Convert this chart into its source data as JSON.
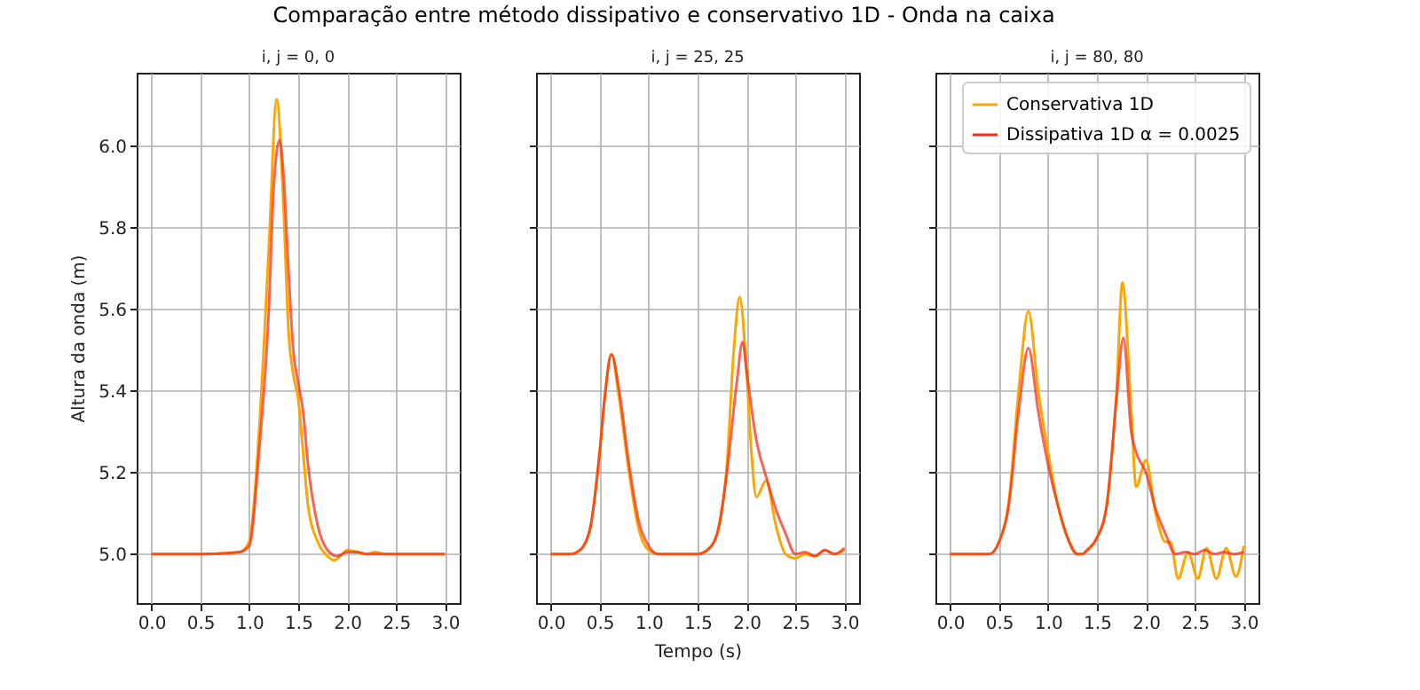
{
  "chart_data": [
    {
      "type": "line",
      "title": "i, j = 0, 0",
      "ylabel": "Altura da onda (m)",
      "annotations": [
        "Comparação entre método dissipativo e conservativo 1D - Onda na caixa"
      ],
      "xlim": [
        -0.15,
        3.15
      ],
      "ylim": [
        4.88,
        6.18
      ],
      "xticks": [
        {
          "value": 0,
          "label": "0.0"
        },
        0.5,
        {
          "value": 1,
          "label": "1.0"
        },
        1.5,
        {
          "value": 2,
          "label": "2.0"
        },
        2.5,
        {
          "value": 3,
          "label": "3.0"
        }
      ],
      "yticks": [
        {
          "value": 5,
          "label": "5.0"
        },
        5.2,
        5.4,
        5.6,
        5.8,
        {
          "value": 6,
          "label": "6.0"
        }
      ],
      "grid": true,
      "legend": false,
      "series": [
        {
          "color": "#ffa500",
          "x": [
            0,
            0.5,
            0.9,
            1.0,
            1.1,
            1.2,
            1.28,
            1.35,
            1.4,
            1.45,
            1.5,
            1.55,
            1.6,
            1.7,
            1.8,
            1.87,
            1.95,
            2.0,
            2.1,
            2.2,
            2.28,
            2.4,
            3.0
          ],
          "values": [
            5.0,
            5.0,
            5.005,
            5.03,
            5.3,
            5.75,
            6.115,
            5.85,
            5.55,
            5.44,
            5.38,
            5.25,
            5.12,
            5.03,
            4.995,
            4.985,
            5.0,
            5.01,
            5.005,
            5.0,
            5.005,
            5.0,
            5.0
          ]
        },
        {
          "color": "#f5301e",
          "x": [
            0,
            0.5,
            0.9,
            1.0,
            1.1,
            1.2,
            1.25,
            1.31,
            1.35,
            1.4,
            1.45,
            1.5,
            1.55,
            1.6,
            1.7,
            1.8,
            1.9,
            2.0,
            2.1,
            2.2,
            3.0
          ],
          "values": [
            5.0,
            5.0,
            5.005,
            5.02,
            5.25,
            5.6,
            5.9,
            6.015,
            5.93,
            5.7,
            5.5,
            5.42,
            5.35,
            5.22,
            5.07,
            5.01,
            4.995,
            5.005,
            5.005,
            5.0,
            5.0
          ]
        }
      ]
    },
    {
      "type": "line",
      "title": "i, j = 25, 25",
      "xlabel": "Tempo (s)",
      "xlim": [
        -0.15,
        3.15
      ],
      "ylim": [
        4.88,
        6.18
      ],
      "xticks": [
        {
          "value": 0,
          "label": "0.0"
        },
        0.5,
        {
          "value": 1,
          "label": "1.0"
        },
        1.5,
        {
          "value": 2,
          "label": "2.0"
        },
        2.5,
        {
          "value": 3,
          "label": "3.0"
        }
      ],
      "yticks": [
        5.0,
        5.2,
        5.4,
        5.6,
        5.8,
        6.0
      ],
      "tick_labels": "x",
      "grid": true,
      "legend": false,
      "series": [
        {
          "color": "#ffa500",
          "x": [
            0,
            0.2,
            0.3,
            0.4,
            0.5,
            0.55,
            0.62,
            0.7,
            0.8,
            0.9,
            1.0,
            1.1,
            1.5,
            1.6,
            1.7,
            1.8,
            1.87,
            1.93,
            2.0,
            2.05,
            2.1,
            2.2,
            2.3,
            2.4,
            2.5,
            2.6,
            2.7,
            2.8,
            2.9,
            3.0
          ],
          "values": [
            5.0,
            5.0,
            5.01,
            5.06,
            5.25,
            5.38,
            5.49,
            5.38,
            5.2,
            5.06,
            5.01,
            5.0,
            5.0,
            5.01,
            5.05,
            5.22,
            5.5,
            5.63,
            5.45,
            5.25,
            5.14,
            5.18,
            5.07,
            5.0,
            4.99,
            5.0,
            4.995,
            5.01,
            5.0,
            5.01
          ]
        },
        {
          "color": "#f5301e",
          "x": [
            0,
            0.2,
            0.3,
            0.4,
            0.5,
            0.55,
            0.62,
            0.7,
            0.8,
            0.9,
            1.0,
            1.1,
            1.5,
            1.6,
            1.7,
            1.8,
            1.9,
            1.96,
            2.0,
            2.1,
            2.2,
            2.3,
            2.4,
            2.5,
            2.6,
            2.7,
            2.8,
            2.9,
            3.0
          ],
          "values": [
            5.0,
            5.0,
            5.01,
            5.06,
            5.25,
            5.38,
            5.49,
            5.4,
            5.22,
            5.08,
            5.02,
            5.0,
            5.0,
            5.01,
            5.05,
            5.2,
            5.42,
            5.52,
            5.45,
            5.28,
            5.19,
            5.11,
            5.05,
            5.0,
            5.005,
            4.995,
            5.01,
            5.0,
            5.015
          ]
        }
      ]
    },
    {
      "type": "line",
      "title": "i, j = 80, 80",
      "xlim": [
        -0.15,
        3.15
      ],
      "ylim": [
        4.88,
        6.18
      ],
      "xticks": [
        {
          "value": 0,
          "label": "0.0"
        },
        0.5,
        {
          "value": 1,
          "label": "1.0"
        },
        1.5,
        {
          "value": 2,
          "label": "2.0"
        },
        2.5,
        {
          "value": 3,
          "label": "3.0"
        }
      ],
      "yticks": [
        5.0,
        5.2,
        5.4,
        5.6,
        5.8,
        6.0
      ],
      "tick_labels": "x",
      "grid": true,
      "legend": "top right",
      "series": [
        {
          "name": "Conservativa 1D",
          "color": "#ffa500",
          "x": [
            0,
            0.4,
            0.5,
            0.6,
            0.7,
            0.8,
            0.9,
            1.0,
            1.1,
            1.2,
            1.3,
            1.35,
            1.4,
            1.5,
            1.6,
            1.7,
            1.76,
            1.85,
            1.9,
            2.0,
            2.1,
            2.2,
            2.25,
            2.33,
            2.43,
            2.53,
            2.62,
            2.72,
            2.82,
            2.92,
            3.0
          ],
          "values": [
            5.0,
            5.0,
            5.03,
            5.13,
            5.4,
            5.595,
            5.4,
            5.25,
            5.12,
            5.04,
            5.0,
            5.0,
            5.01,
            5.04,
            5.12,
            5.4,
            5.666,
            5.35,
            5.165,
            5.23,
            5.1,
            5.03,
            5.03,
            4.94,
            5.005,
            4.94,
            5.015,
            4.94,
            5.015,
            4.945,
            5.02
          ]
        },
        {
          "name": "Dissipativa 1D α = 0.0025",
          "color": "#f5301e",
          "x": [
            0,
            0.4,
            0.5,
            0.6,
            0.7,
            0.8,
            0.9,
            1.0,
            1.1,
            1.2,
            1.3,
            1.35,
            1.4,
            1.5,
            1.6,
            1.7,
            1.77,
            1.85,
            1.9,
            2.0,
            2.1,
            2.2,
            2.3,
            2.4,
            2.5,
            2.6,
            2.7,
            2.8,
            2.9,
            3.0
          ],
          "values": [
            5.0,
            5.0,
            5.03,
            5.12,
            5.35,
            5.505,
            5.35,
            5.22,
            5.12,
            5.04,
            5.0,
            5.0,
            5.01,
            5.04,
            5.12,
            5.38,
            5.53,
            5.3,
            5.25,
            5.2,
            5.11,
            5.05,
            5.0,
            5.005,
            5.0,
            5.01,
            5.0,
            5.005,
            5.0,
            5.005
          ]
        }
      ]
    }
  ]
}
